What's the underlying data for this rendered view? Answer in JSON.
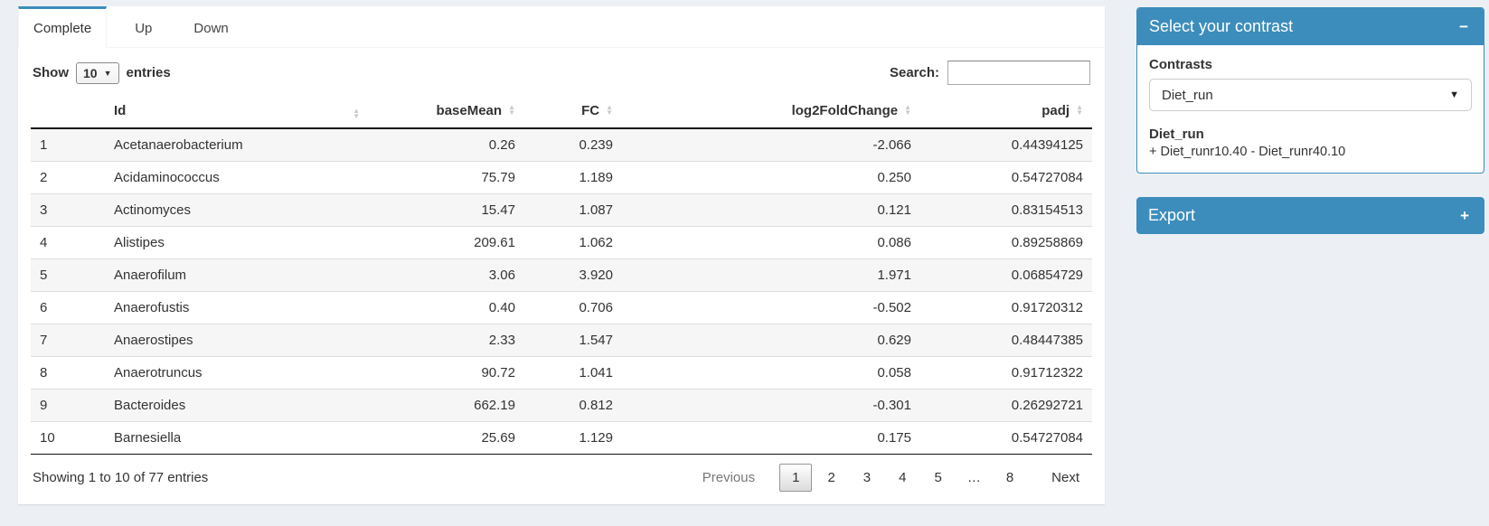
{
  "tabs": {
    "complete": "Complete",
    "up": "Up",
    "down": "Down"
  },
  "length_control": {
    "show": "Show",
    "selected": "10",
    "entries": "entries"
  },
  "search": {
    "label": "Search:",
    "value": ""
  },
  "icons": {
    "sort_asc": "▲",
    "sort_desc": "▼",
    "caret_down": "▼",
    "collapse": "−",
    "expand": "+"
  },
  "table": {
    "headers": {
      "index": "",
      "id": "Id",
      "baseMean": "baseMean",
      "fc": "FC",
      "log2fc": "log2FoldChange",
      "padj": "padj"
    },
    "rows": [
      {
        "n": "1",
        "id": "Acetanaerobacterium",
        "baseMean": "0.26",
        "fc": "0.239",
        "log2fc": "-2.066",
        "padj": "0.44394125"
      },
      {
        "n": "2",
        "id": "Acidaminococcus",
        "baseMean": "75.79",
        "fc": "1.189",
        "log2fc": "0.250",
        "padj": "0.54727084"
      },
      {
        "n": "3",
        "id": "Actinomyces",
        "baseMean": "15.47",
        "fc": "1.087",
        "log2fc": "0.121",
        "padj": "0.83154513"
      },
      {
        "n": "4",
        "id": "Alistipes",
        "baseMean": "209.61",
        "fc": "1.062",
        "log2fc": "0.086",
        "padj": "0.89258869"
      },
      {
        "n": "5",
        "id": "Anaerofilum",
        "baseMean": "3.06",
        "fc": "3.920",
        "log2fc": "1.971",
        "padj": "0.06854729"
      },
      {
        "n": "6",
        "id": "Anaerofustis",
        "baseMean": "0.40",
        "fc": "0.706",
        "log2fc": "-0.502",
        "padj": "0.91720312"
      },
      {
        "n": "7",
        "id": "Anaerostipes",
        "baseMean": "2.33",
        "fc": "1.547",
        "log2fc": "0.629",
        "padj": "0.48447385"
      },
      {
        "n": "8",
        "id": "Anaerotruncus",
        "baseMean": "90.72",
        "fc": "1.041",
        "log2fc": "0.058",
        "padj": "0.91712322"
      },
      {
        "n": "9",
        "id": "Bacteroides",
        "baseMean": "662.19",
        "fc": "0.812",
        "log2fc": "-0.301",
        "padj": "0.26292721"
      },
      {
        "n": "10",
        "id": "Barnesiella",
        "baseMean": "25.69",
        "fc": "1.129",
        "log2fc": "0.175",
        "padj": "0.54727084"
      }
    ]
  },
  "footer": {
    "info": "Showing 1 to 10 of 77 entries",
    "pagination": {
      "previous": "Previous",
      "pages": [
        "1",
        "2",
        "3",
        "4",
        "5",
        "…",
        "8"
      ],
      "current_page": "1",
      "next": "Next"
    }
  },
  "contrast_panel": {
    "title": "Select your contrast",
    "contrasts_label": "Contrasts",
    "selected_contrast": "Diet_run",
    "contrast_name": "Diet_run",
    "contrast_formula": "+ Diet_runr10.40 - Diet_runr40.10"
  },
  "export_panel": {
    "title": "Export"
  },
  "colors": {
    "primary": "#3c8dbc",
    "page_bg": "#ecf0f5",
    "stripe": "#f6f6f6",
    "header_border": "#111111"
  }
}
